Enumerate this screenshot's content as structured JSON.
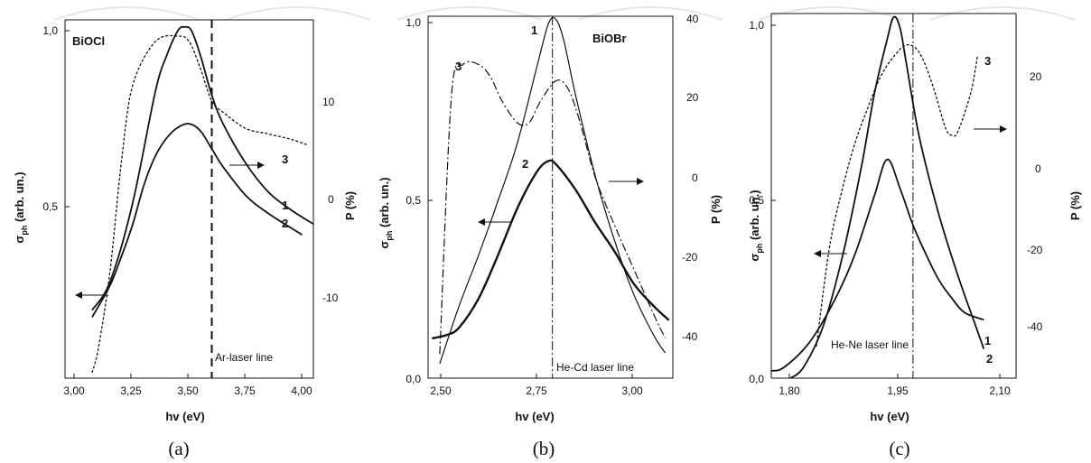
{
  "chart_data": [
    {
      "type": "line",
      "panel_label": "(a)",
      "material": "BiOCl",
      "xlabel": "hv (eV)",
      "ylabel_left": "σph (arb. un.)",
      "ylabel_right": "P (%)",
      "xlim": [
        3.0,
        4.1
      ],
      "ylim_left": [
        0.0,
        1.0
      ],
      "ylim_right": [
        -17,
        16
      ],
      "x_ticks": [
        "3,00",
        "3,25",
        "3,50",
        "3,75",
        "4,00"
      ],
      "y_left_ticks": [
        "1,0",
        "0,5"
      ],
      "y_right_ticks": [
        "10",
        "0",
        "-10"
      ],
      "laser_line": {
        "x": 3.65,
        "label": "Ar-laser line"
      },
      "series": [
        {
          "name": "1",
          "axis": "left",
          "style": "solid",
          "x": [
            3.12,
            3.2,
            3.3,
            3.4,
            3.45,
            3.5,
            3.53,
            3.56,
            3.6,
            3.65,
            3.7,
            3.8,
            3.9,
            4.0,
            4.1
          ],
          "y": [
            0.19,
            0.27,
            0.49,
            0.8,
            0.9,
            0.97,
            0.98,
            0.97,
            0.9,
            0.79,
            0.71,
            0.6,
            0.52,
            0.47,
            0.43
          ]
        },
        {
          "name": "2",
          "axis": "left",
          "style": "solid",
          "x": [
            3.12,
            3.2,
            3.25,
            3.3,
            3.35,
            3.4,
            3.45,
            3.5,
            3.55,
            3.6,
            3.65,
            3.7,
            3.8,
            3.9,
            4.05
          ],
          "y": [
            0.17,
            0.26,
            0.34,
            0.43,
            0.54,
            0.62,
            0.67,
            0.7,
            0.71,
            0.69,
            0.64,
            0.59,
            0.51,
            0.46,
            0.4
          ]
        },
        {
          "name": "3",
          "axis": "right",
          "style": "dotted",
          "x": [
            3.12,
            3.15,
            3.2,
            3.25,
            3.3,
            3.4,
            3.5,
            3.55,
            3.6,
            3.65,
            3.7,
            3.8,
            3.9,
            4.0,
            4.07
          ],
          "y": [
            -16.5,
            -14,
            -7,
            3,
            10,
            14,
            14.5,
            14,
            11.5,
            8.5,
            7.5,
            6,
            5.5,
            5,
            4.5
          ]
        }
      ]
    },
    {
      "type": "line",
      "panel_label": "(b)",
      "material": "BiOBr",
      "xlabel": "hv (eV)",
      "ylabel_left": "σph (arb. un.)",
      "ylabel_right": "P (%)",
      "xlim": [
        2.47,
        3.1
      ],
      "ylim_left": [
        0.0,
        1.0
      ],
      "ylim_right": [
        -50,
        40
      ],
      "x_ticks": [
        "2,50",
        "2,75",
        "3,00"
      ],
      "y_left_ticks": [
        "1,0",
        "0,5",
        "0,0"
      ],
      "y_right_ticks": [
        "40",
        "20",
        "0",
        "-20",
        "-40"
      ],
      "laser_line": {
        "x": 2.79,
        "label": "He-Cd laser line"
      },
      "series": [
        {
          "name": "1",
          "axis": "left",
          "style": "solid-thin",
          "x": [
            2.5,
            2.55,
            2.6,
            2.65,
            2.7,
            2.75,
            2.78,
            2.8,
            2.82,
            2.85,
            2.9,
            2.95,
            3.0,
            3.05,
            3.08
          ],
          "y": [
            0.04,
            0.2,
            0.34,
            0.49,
            0.65,
            0.86,
            0.98,
            0.99,
            0.93,
            0.78,
            0.56,
            0.38,
            0.23,
            0.12,
            0.07
          ]
        },
        {
          "name": "2",
          "axis": "left",
          "style": "solid-thick",
          "x": [
            2.48,
            2.52,
            2.55,
            2.6,
            2.65,
            2.7,
            2.75,
            2.78,
            2.8,
            2.85,
            2.9,
            2.95,
            3.0,
            3.05,
            3.09
          ],
          "y": [
            0.11,
            0.12,
            0.14,
            0.22,
            0.34,
            0.47,
            0.57,
            0.6,
            0.59,
            0.52,
            0.43,
            0.35,
            0.26,
            0.2,
            0.16
          ]
        },
        {
          "name": "3",
          "axis": "right",
          "style": "dash-dot",
          "x": [
            2.5,
            2.53,
            2.56,
            2.6,
            2.63,
            2.66,
            2.7,
            2.73,
            2.76,
            2.8,
            2.83,
            2.86,
            2.9,
            2.95,
            3.0,
            3.05,
            3.08
          ],
          "y": [
            -44,
            20,
            28,
            28,
            25,
            19,
            13.5,
            13.5,
            19,
            24,
            22,
            14,
            0,
            -12,
            -23,
            -34,
            -40
          ]
        }
      ]
    },
    {
      "type": "line",
      "panel_label": "(c)",
      "material": "",
      "xlabel": "hv (eV)",
      "ylabel_left": "σph (arb. un.)",
      "ylabel_right": "P (%)",
      "xlim": [
        1.77,
        2.15
      ],
      "ylim_left": [
        0.0,
        1.0
      ],
      "ylim_right": [
        -55,
        38
      ],
      "x_ticks": [
        "1,80",
        "1,95",
        "2,10"
      ],
      "y_left_ticks": [
        "1,0",
        "0,5",
        "0,0"
      ],
      "y_right_ticks": [
        "20",
        "0",
        "-20",
        "-40"
      ],
      "laser_line": {
        "x": 1.99,
        "label": "He-Ne laser line"
      },
      "series": [
        {
          "name": "1",
          "axis": "left",
          "style": "solid",
          "x": [
            1.77,
            1.79,
            1.83,
            1.87,
            1.9,
            1.93,
            1.95,
            1.97,
            1.99,
            2.01,
            2.03,
            2.05,
            2.07,
            2.1
          ],
          "y": [
            0.02,
            0.03,
            0.1,
            0.22,
            0.34,
            0.5,
            0.6,
            0.52,
            0.42,
            0.34,
            0.27,
            0.22,
            0.18,
            0.16
          ]
        },
        {
          "name": "2",
          "axis": "left",
          "style": "solid",
          "x": [
            1.8,
            1.82,
            1.85,
            1.88,
            1.91,
            1.93,
            1.95,
            1.96,
            1.97,
            1.98,
            2.0,
            2.03,
            2.06,
            2.09,
            2.1
          ],
          "y": [
            0.0,
            0.03,
            0.14,
            0.33,
            0.58,
            0.78,
            0.93,
            0.99,
            0.96,
            0.86,
            0.66,
            0.45,
            0.28,
            0.13,
            0.08
          ]
        },
        {
          "name": "3",
          "axis": "right",
          "style": "dotted",
          "x": [
            1.84,
            1.86,
            1.88,
            1.9,
            1.92,
            1.94,
            1.96,
            1.98,
            2.0,
            2.02,
            2.04,
            2.05,
            2.06,
            2.08,
            2.09
          ],
          "y": [
            -47,
            -22,
            -7,
            5,
            14,
            22,
            27,
            30,
            28,
            20,
            9,
            7,
            8,
            18,
            27
          ]
        }
      ]
    }
  ]
}
